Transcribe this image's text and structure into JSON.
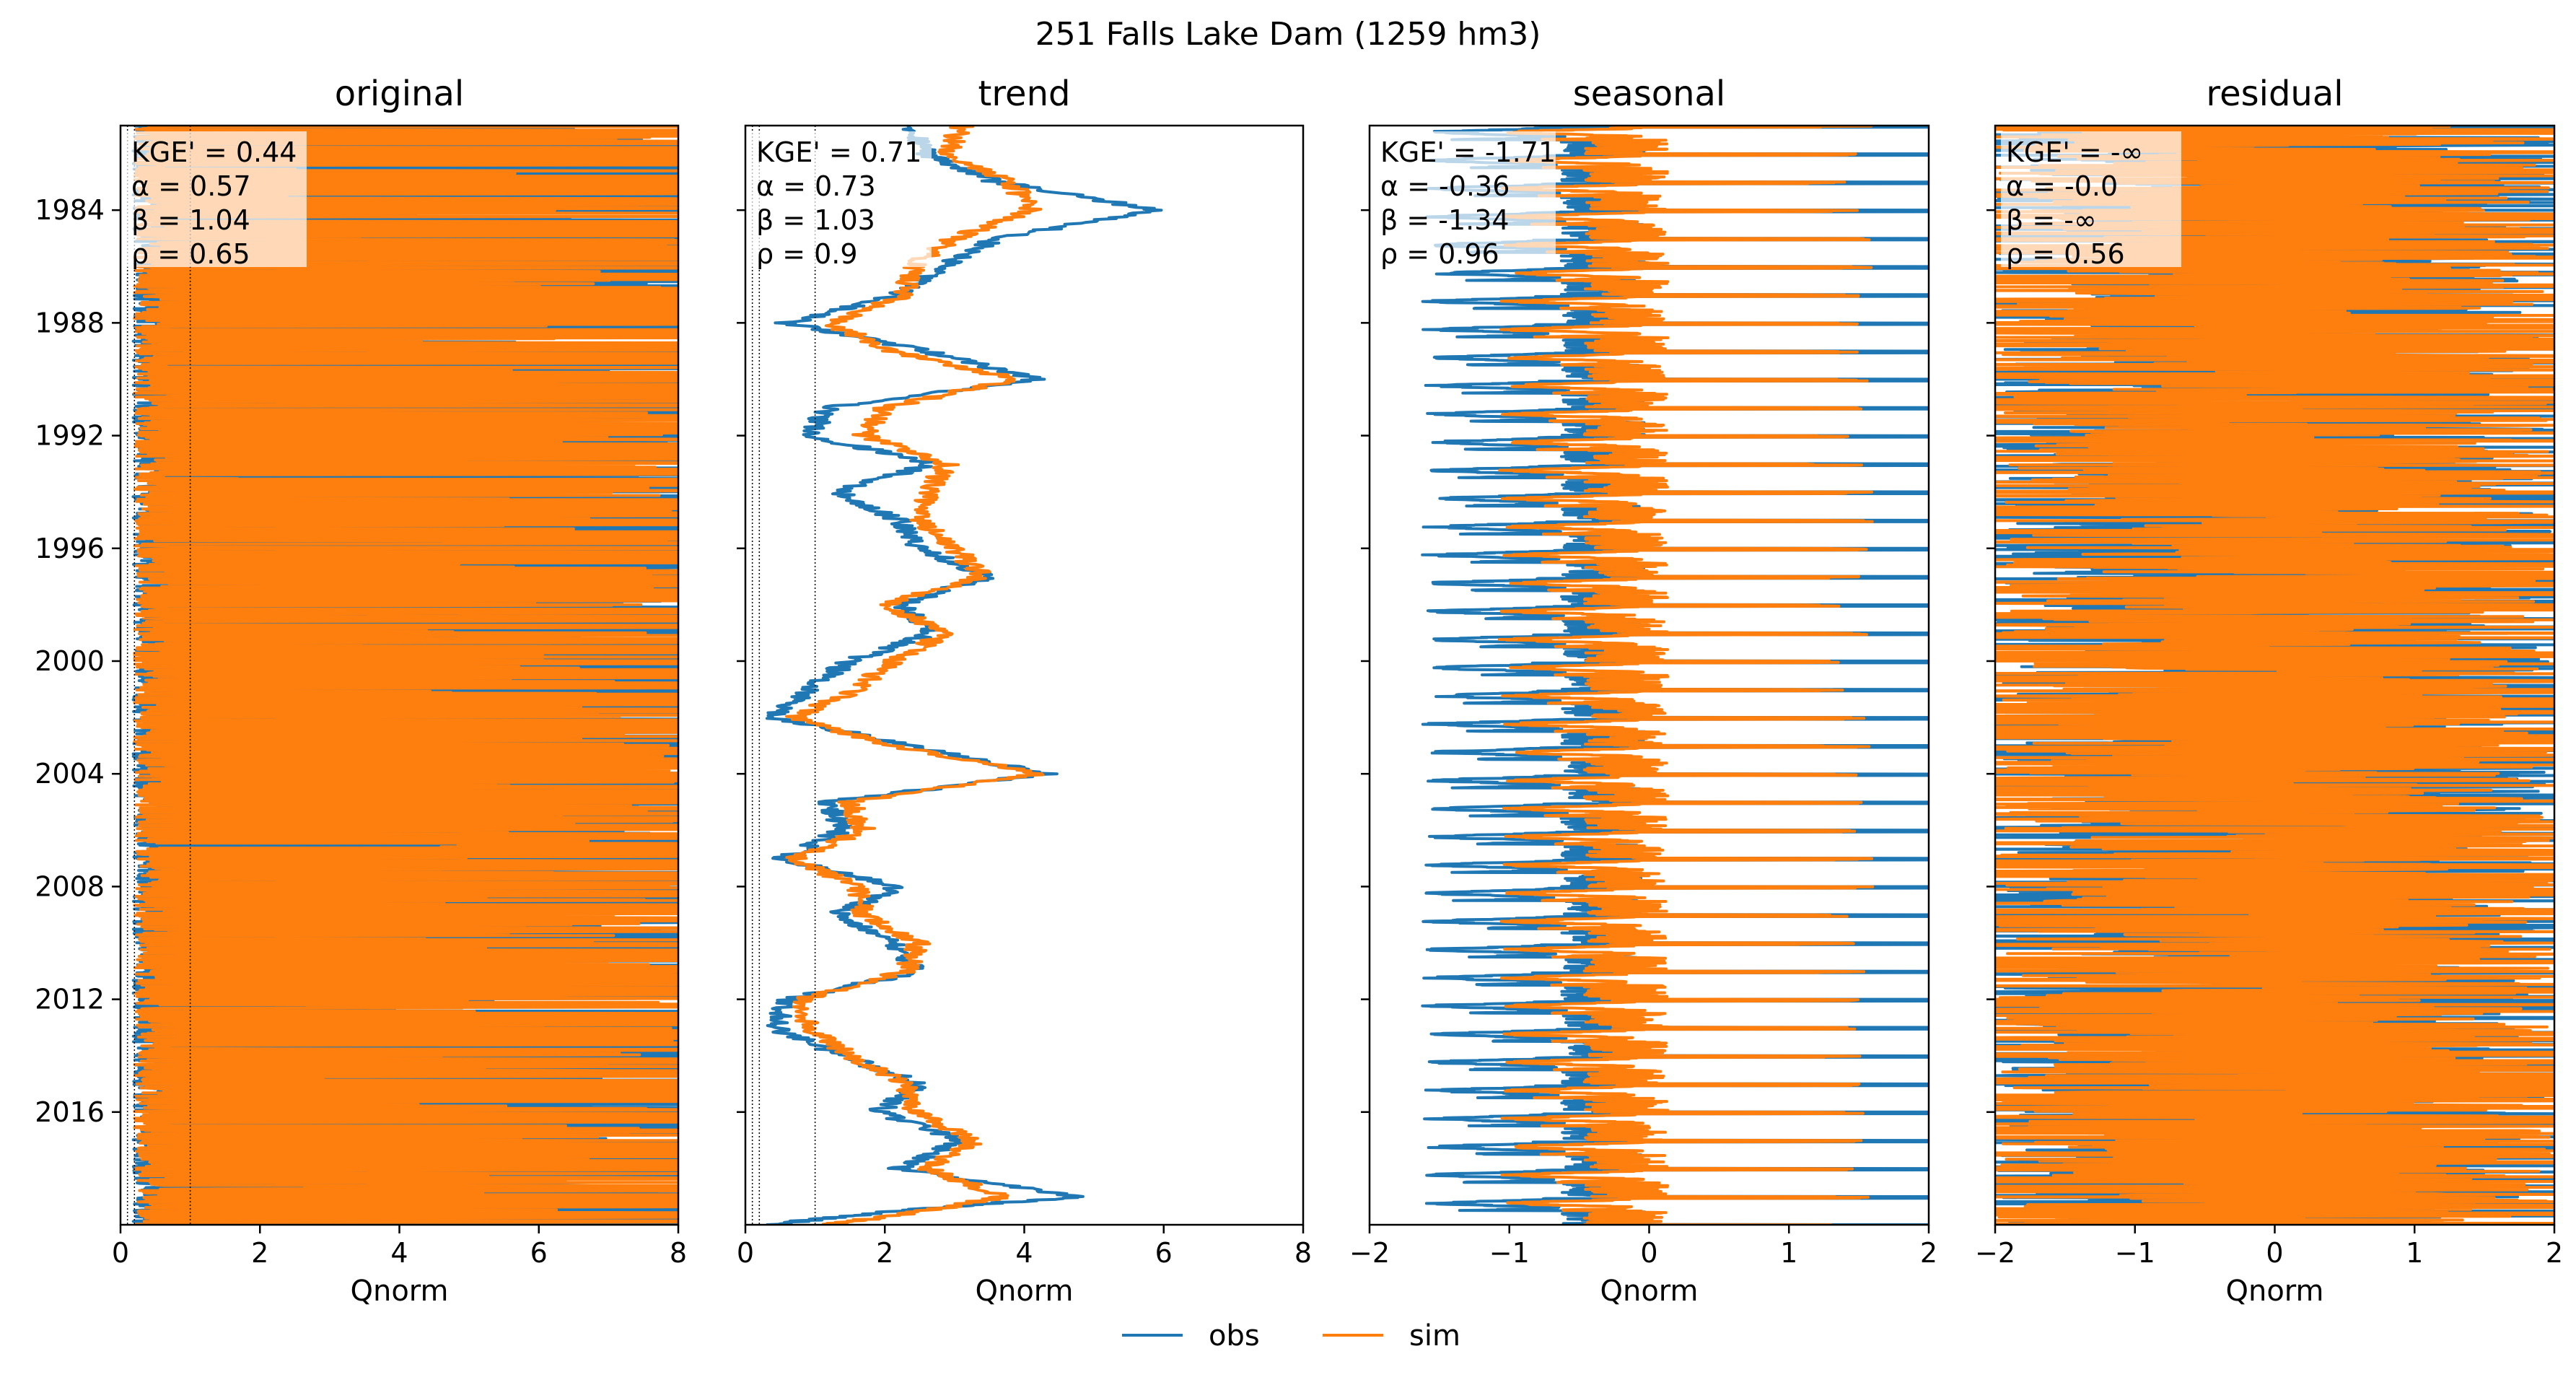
{
  "figure_title": "251  Falls Lake Dam (1259 hm3)",
  "colors": {
    "obs": "#1f77b4",
    "sim": "#ff7f0e"
  },
  "legend": {
    "placement": "bottom-center",
    "entries": [
      "obs",
      "sim"
    ]
  },
  "chart_data": [
    {
      "type": "line",
      "title": "original",
      "xlabel": "Qnorm",
      "ylabel": "",
      "xlim": [
        0,
        8
      ],
      "xticks": [
        "0",
        "2",
        "4",
        "6",
        "8"
      ],
      "ylim": [
        1981.0,
        2020.0
      ],
      "yticks": [
        "1984",
        "1988",
        "1992",
        "1996",
        "2000",
        "2004",
        "2008",
        "2012",
        "2016"
      ],
      "reference_lines_x": [
        0.1,
        0.2,
        1.0
      ],
      "stats": [
        "KGE' = 0.44",
        "α = 0.57",
        "β = 1.04",
        "ρ = 0.65"
      ],
      "series": [
        {
          "name": "obs",
          "pattern": "spiky",
          "base": 0.45,
          "amp": 3.0,
          "clip": 8.0,
          "seed": 11
        },
        {
          "name": "sim",
          "pattern": "spiky",
          "base": 0.5,
          "amp": 3.2,
          "clip": 8.0,
          "seed": 23
        }
      ]
    },
    {
      "type": "line",
      "title": "trend",
      "xlabel": "Qnorm",
      "ylabel": "",
      "xlim": [
        0,
        8
      ],
      "xticks": [
        "0",
        "2",
        "4",
        "6",
        "8"
      ],
      "ylim": [
        1981.0,
        2020.0
      ],
      "yticks": [
        "1984",
        "1988",
        "1992",
        "1996",
        "2000",
        "2004",
        "2008",
        "2012",
        "2016"
      ],
      "reference_lines_x": [
        0.1,
        0.2,
        1.0
      ],
      "stats": [
        "KGE' = 0.71",
        "α = 0.73",
        "β = 1.03",
        "ρ = 0.9"
      ],
      "series": [
        {
          "name": "obs",
          "pattern": "trend",
          "points": [
            [
              1981.0,
              2.4
            ],
            [
              1982.0,
              2.6
            ],
            [
              1983.0,
              3.6
            ],
            [
              1984.0,
              5.9
            ],
            [
              1985.0,
              3.6
            ],
            [
              1986.0,
              2.8
            ],
            [
              1987.0,
              2.2
            ],
            [
              1988.0,
              0.6
            ],
            [
              1989.0,
              2.6
            ],
            [
              1990.0,
              4.2
            ],
            [
              1991.0,
              1.2
            ],
            [
              1992.0,
              0.9
            ],
            [
              1993.0,
              2.7
            ],
            [
              1994.0,
              1.3
            ],
            [
              1995.0,
              2.2
            ],
            [
              1996.0,
              2.5
            ],
            [
              1997.0,
              3.5
            ],
            [
              1998.0,
              2.2
            ],
            [
              1999.0,
              2.7
            ],
            [
              2000.0,
              1.5
            ],
            [
              2001.0,
              0.9
            ],
            [
              2002.0,
              0.4
            ],
            [
              2003.0,
              2.4
            ],
            [
              2004.0,
              4.3
            ],
            [
              2005.0,
              1.2
            ],
            [
              2006.0,
              1.4
            ],
            [
              2007.0,
              0.5
            ],
            [
              2008.0,
              2.2
            ],
            [
              2009.0,
              1.3
            ],
            [
              2010.0,
              2.1
            ],
            [
              2011.0,
              2.5
            ],
            [
              2012.0,
              0.6
            ],
            [
              2013.0,
              0.4
            ],
            [
              2014.0,
              1.4
            ],
            [
              2015.0,
              2.5
            ],
            [
              2016.0,
              1.9
            ],
            [
              2017.0,
              3.1
            ],
            [
              2018.0,
              2.2
            ],
            [
              2019.0,
              4.8
            ],
            [
              2019.5,
              2.2
            ],
            [
              2020.0,
              0.3
            ]
          ]
        },
        {
          "name": "sim",
          "pattern": "trend",
          "points": [
            [
              1981.0,
              3.1
            ],
            [
              1982.0,
              2.9
            ],
            [
              1983.0,
              3.8
            ],
            [
              1984.0,
              4.1
            ],
            [
              1985.0,
              3.0
            ],
            [
              1986.0,
              2.4
            ],
            [
              1987.0,
              2.3
            ],
            [
              1988.0,
              1.2
            ],
            [
              1989.0,
              2.1
            ],
            [
              1990.0,
              3.9
            ],
            [
              1991.0,
              2.0
            ],
            [
              1992.0,
              1.7
            ],
            [
              1993.0,
              2.9
            ],
            [
              1994.0,
              2.6
            ],
            [
              1995.0,
              2.5
            ],
            [
              1996.0,
              3.0
            ],
            [
              1997.0,
              3.4
            ],
            [
              1998.0,
              2.0
            ],
            [
              1999.0,
              2.9
            ],
            [
              2000.0,
              2.1
            ],
            [
              2001.0,
              1.6
            ],
            [
              2002.0,
              0.7
            ],
            [
              2003.0,
              2.1
            ],
            [
              2004.0,
              4.2
            ],
            [
              2005.0,
              1.5
            ],
            [
              2006.0,
              1.7
            ],
            [
              2007.0,
              0.7
            ],
            [
              2008.0,
              1.6
            ],
            [
              2009.0,
              1.7
            ],
            [
              2010.0,
              2.5
            ],
            [
              2011.0,
              2.3
            ],
            [
              2012.0,
              0.8
            ],
            [
              2013.0,
              0.9
            ],
            [
              2014.0,
              1.5
            ],
            [
              2015.0,
              2.3
            ],
            [
              2016.0,
              2.4
            ],
            [
              2017.0,
              3.3
            ],
            [
              2018.0,
              2.6
            ],
            [
              2019.0,
              3.7
            ],
            [
              2019.5,
              2.6
            ],
            [
              2020.0,
              1.2
            ]
          ]
        }
      ]
    },
    {
      "type": "line",
      "title": "seasonal",
      "xlabel": "Qnorm",
      "ylabel": "",
      "xlim": [
        -2,
        2
      ],
      "xticks": [
        "−2",
        "−1",
        "0",
        "1",
        "2"
      ],
      "ylim": [
        1981.0,
        2020.0
      ],
      "yticks": [
        "1984",
        "1988",
        "1992",
        "1996",
        "2000",
        "2004",
        "2008",
        "2012",
        "2016"
      ],
      "reference_lines_x": [],
      "stats": [
        "KGE' = -1.71",
        "α = -0.36",
        "β = -1.34",
        "ρ = 0.96"
      ],
      "series": [
        {
          "name": "obs",
          "pattern": "seasonal",
          "lo": -1.1,
          "hi": 2.0,
          "seed": 5
        },
        {
          "name": "sim",
          "pattern": "seasonal",
          "lo": -0.55,
          "hi": 1.0,
          "seed": 9
        }
      ]
    },
    {
      "type": "line",
      "title": "residual",
      "xlabel": "Qnorm",
      "ylabel": "",
      "xlim": [
        -2,
        2
      ],
      "xticks": [
        "−2",
        "−1",
        "0",
        "1",
        "2"
      ],
      "ylim": [
        1981.0,
        2020.0
      ],
      "yticks": [
        "1984",
        "1988",
        "1992",
        "1996",
        "2000",
        "2004",
        "2008",
        "2012",
        "2016"
      ],
      "reference_lines_x": [],
      "stats": [
        "KGE' = -∞",
        "α = -0.0",
        "β = -∞",
        "ρ = 0.56"
      ],
      "series": [
        {
          "name": "obs",
          "pattern": "residual",
          "amp": 2.0,
          "seed": 31
        },
        {
          "name": "sim",
          "pattern": "residual",
          "amp": 2.2,
          "seed": 47
        }
      ]
    }
  ]
}
